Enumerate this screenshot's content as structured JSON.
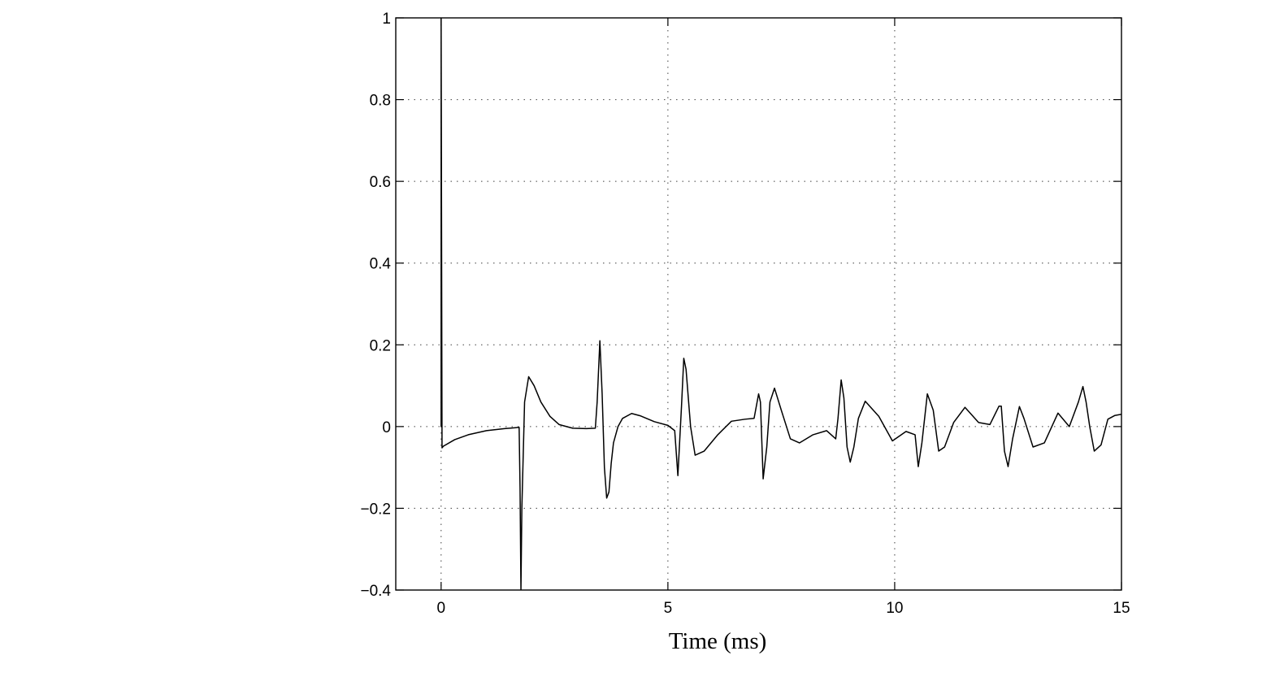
{
  "chart_data": {
    "type": "line",
    "title": "",
    "xlabel": "Time (ms)",
    "ylabel": "",
    "xlim": [
      -1,
      15
    ],
    "ylim": [
      -0.4,
      1
    ],
    "x_ticks": [
      0,
      5,
      10,
      15
    ],
    "x_tick_labels": [
      "0",
      "5",
      "10",
      "15"
    ],
    "y_ticks": [
      1,
      0.8,
      0.6,
      0.4,
      0.2,
      0,
      -0.2,
      -0.4
    ],
    "y_tick_labels": [
      "1",
      "0.8",
      "0.6",
      "0.4",
      "0.2",
      "0",
      "−0.2",
      "−0.4"
    ],
    "grid": true,
    "legend": "none",
    "line_color": "#000000",
    "series": [
      {
        "x": [
          0,
          0.02,
          0.05,
          0.3,
          0.6,
          1.0,
          1.4,
          1.72,
          1.74,
          1.76,
          1.78,
          1.84,
          1.93,
          2.05,
          2.2,
          2.4,
          2.6,
          2.9,
          3.2,
          3.4,
          3.44,
          3.5,
          3.55,
          3.6,
          3.65,
          3.7,
          3.75,
          3.8,
          3.9,
          4.0,
          4.2,
          4.4,
          4.7,
          5.0,
          5.15,
          5.22,
          5.3,
          5.35,
          5.4,
          5.5,
          5.6,
          5.8,
          6.1,
          6.4,
          6.7,
          6.9,
          7.0,
          7.04,
          7.1,
          7.18,
          7.25,
          7.35,
          7.5,
          7.7,
          7.9,
          8.2,
          8.5,
          8.7,
          8.75,
          8.82,
          8.88,
          8.95,
          9.02,
          9.1,
          9.2,
          9.35,
          9.65,
          9.95,
          10.25,
          10.45,
          10.52,
          10.6,
          10.72,
          10.85,
          10.97,
          11.1,
          11.3,
          11.55,
          11.85,
          12.1,
          12.3,
          12.35,
          12.42,
          12.5,
          12.6,
          12.75,
          12.85,
          13.05,
          13.3,
          13.6,
          13.85,
          14.05,
          14.15,
          14.22,
          14.3,
          14.4,
          14.55,
          14.7,
          14.85,
          15.0
        ],
        "y": [
          1.0,
          -0.052,
          -0.048,
          -0.032,
          -0.02,
          -0.01,
          -0.005,
          -0.002,
          -0.15,
          -0.4,
          -0.2,
          0.06,
          0.122,
          0.1,
          0.06,
          0.025,
          0.005,
          -0.004,
          -0.005,
          -0.004,
          0.06,
          0.21,
          0.08,
          -0.1,
          -0.175,
          -0.16,
          -0.09,
          -0.04,
          0.0,
          0.02,
          0.032,
          0.026,
          0.012,
          0.003,
          -0.01,
          -0.12,
          0.05,
          0.167,
          0.14,
          0.0,
          -0.07,
          -0.06,
          -0.02,
          0.013,
          0.018,
          0.02,
          0.08,
          0.06,
          -0.128,
          -0.05,
          0.06,
          0.094,
          0.04,
          -0.03,
          -0.04,
          -0.02,
          -0.01,
          -0.03,
          0.02,
          0.114,
          0.07,
          -0.05,
          -0.087,
          -0.05,
          0.02,
          0.062,
          0.025,
          -0.035,
          -0.012,
          -0.02,
          -0.098,
          -0.04,
          0.08,
          0.04,
          -0.06,
          -0.05,
          0.01,
          0.047,
          0.01,
          0.005,
          0.05,
          0.05,
          -0.06,
          -0.098,
          -0.03,
          0.049,
          0.02,
          -0.05,
          -0.04,
          0.033,
          0.0,
          0.06,
          0.098,
          0.06,
          0.0,
          -0.06,
          -0.045,
          0.018,
          0.027,
          0.03
        ]
      }
    ]
  }
}
